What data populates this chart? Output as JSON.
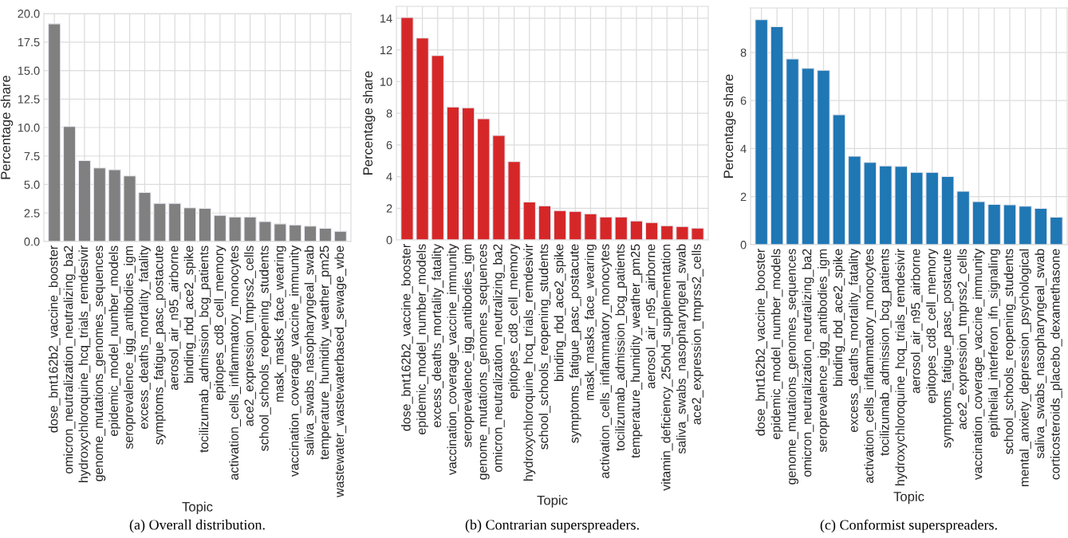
{
  "chart_data": [
    {
      "type": "bar",
      "xlabel": "Topic",
      "ylabel": "Percentage share",
      "annotations": [
        "(a) Overall distribution."
      ],
      "color": "#808080",
      "grid": true,
      "categories": [
        "dose_bnt162b2_vaccine_booster",
        "omicron_neutralization_neutralizing_ba2",
        "hydroxychloroquine_hcq_trials_remdesivir",
        "genome_mutations_genomes_sequences",
        "epidemic_model_number_models",
        "seroprevalence_igg_antibodies_igm",
        "excess_deaths_mortality_fatality",
        "symptoms_fatigue_pasc_postacute",
        "aerosol_air_n95_airborne",
        "binding_rbd_ace2_spike",
        "tocilizumab_admission_bcg_patients",
        "epitopes_cd8_cell_memory",
        "activation_cells_inflammatory_monocytes",
        "ace2_expression_tmprss2_cells",
        "school_schools_reopening_students",
        "mask_masks_face_wearing",
        "vaccination_coverage_vaccine_immunity",
        "saliva_swabs_nasopharyngeal_swab",
        "temperature_humidity_weather_pm25",
        "wastewater_wastewaterbased_sewage_wbe"
      ],
      "values": [
        19.1,
        10.1,
        7.1,
        6.45,
        6.3,
        5.75,
        4.3,
        3.35,
        3.35,
        2.95,
        2.9,
        2.3,
        2.15,
        2.15,
        1.75,
        1.55,
        1.45,
        1.35,
        1.15,
        0.9
      ],
      "ylim": [
        0,
        20
      ],
      "yticks": [
        {
          "value": 0,
          "label": "0.0"
        },
        {
          "value": 2.5,
          "label": "2.5"
        },
        {
          "value": 5,
          "label": "5.0"
        },
        {
          "value": 7.5,
          "label": "7.5"
        },
        {
          "value": 10,
          "label": "10.0"
        },
        {
          "value": 12.5,
          "label": "12.5"
        },
        {
          "value": 15,
          "label": "15.0"
        },
        {
          "value": 17.5,
          "label": "17.5"
        },
        {
          "value": 20,
          "label": "20.0"
        }
      ]
    },
    {
      "type": "bar",
      "xlabel": "Topic",
      "ylabel": "Percentage share",
      "annotations": [
        "(b) Contrarian superspreaders."
      ],
      "color": "#d62728",
      "grid": true,
      "categories": [
        "dose_bnt162b2_vaccine_booster",
        "epidemic_model_number_models",
        "excess_deaths_mortality_fatality",
        "vaccination_coverage_vaccine_immunity",
        "seroprevalence_igg_antibodies_igm",
        "genome_mutations_genomes_sequences",
        "omicron_neutralization_neutralizing_ba2",
        "epitopes_cd8_cell_memory",
        "hydroxychloroquine_hcq_trials_remdesivir",
        "school_schools_reopening_students",
        "binding_rbd_ace2_spike",
        "symptoms_fatigue_pasc_postacute",
        "mask_masks_face_wearing",
        "activation_cells_inflammatory_monocytes",
        "tocilizumab_admission_bcg_patients",
        "temperature_humidity_weather_pm25",
        "aerosol_air_n95_airborne",
        "vitamin_deficiency_25ohd_supplementation",
        "saliva_swabs_nasopharyngeal_swab",
        "ace2_expression_tmprss2_cells"
      ],
      "values": [
        14.05,
        12.75,
        11.65,
        8.4,
        8.35,
        7.65,
        6.6,
        4.95,
        2.4,
        2.15,
        1.85,
        1.8,
        1.65,
        1.45,
        1.45,
        1.2,
        1.1,
        0.9,
        0.85,
        0.75
      ],
      "ylim": [
        0,
        14.75
      ],
      "yticks": [
        0,
        2,
        4,
        6,
        8,
        10,
        12,
        14
      ]
    },
    {
      "type": "bar",
      "xlabel": "Topic",
      "ylabel": "Percentage share",
      "annotations": [
        "(c) Conformist superspreaders."
      ],
      "color": "#1f77b4",
      "grid": true,
      "categories": [
        "dose_bnt162b2_vaccine_booster",
        "epidemic_model_number_models",
        "genome_mutations_genomes_sequences",
        "omicron_neutralization_neutralizing_ba2",
        "seroprevalence_igg_antibodies_igm",
        "binding_rbd_ace2_spike",
        "excess_deaths_mortality_fatality",
        "activation_cells_inflammatory_monocytes",
        "tocilizumab_admission_bcg_patients",
        "hydroxychloroquine_hcq_trials_remdesivir",
        "aerosol_air_n95_airborne",
        "epitopes_cd8_cell_memory",
        "symptoms_fatigue_pasc_postacute",
        "ace2_expression_tmprss2_cells",
        "vaccination_coverage_vaccine_immunity",
        "epithelial_interferon_ifn_signaling",
        "school_schools_reopening_students",
        "mental_anxiety_depression_psychological",
        "saliva_swabs_nasopharyngeal_swab",
        "corticosteroids_placebo_dexamethasone"
      ],
      "values": [
        9.36,
        9.07,
        7.73,
        7.34,
        7.26,
        5.41,
        3.68,
        3.43,
        3.28,
        3.26,
        3.01,
        3.01,
        2.84,
        2.22,
        1.79,
        1.68,
        1.66,
        1.6,
        1.51,
        1.15
      ],
      "ylim": [
        0,
        9.85
      ],
      "yticks": [
        0,
        2,
        4,
        6,
        8
      ]
    }
  ]
}
